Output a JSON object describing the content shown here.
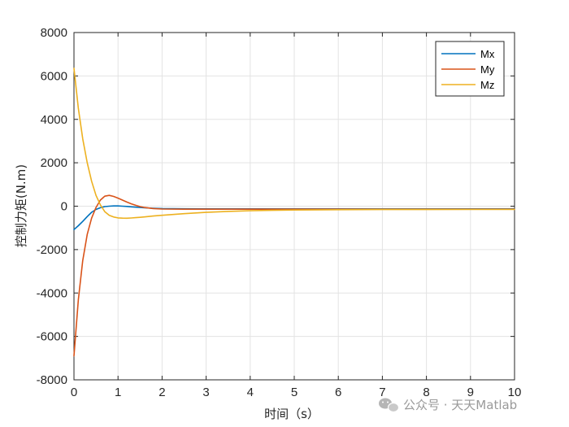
{
  "chart_data": {
    "type": "line",
    "title": "",
    "xlabel": "时间（s）",
    "ylabel": "控制力矩(N.m)",
    "xlim": [
      0,
      10
    ],
    "ylim": [
      -8000,
      8000
    ],
    "xticks": [
      0,
      1,
      2,
      3,
      4,
      5,
      6,
      7,
      8,
      9,
      10
    ],
    "yticks": [
      -8000,
      -6000,
      -4000,
      -2000,
      0,
      2000,
      4000,
      6000,
      8000
    ],
    "grid": true,
    "legend_position": "top-right",
    "x": [
      0,
      0.1,
      0.2,
      0.3,
      0.4,
      0.5,
      0.6,
      0.7,
      0.8,
      0.9,
      1.0,
      1.1,
      1.2,
      1.3,
      1.4,
      1.5,
      1.6,
      1.8,
      2.0,
      2.5,
      3.0,
      3.5,
      4.0,
      4.5,
      5.0,
      6.0,
      7.0,
      8.0,
      9.0,
      10.0
    ],
    "series": [
      {
        "name": "Mx",
        "color": "#0072BD",
        "values": [
          -1080,
          -900,
          -700,
          -480,
          -280,
          -150,
          -70,
          -20,
          0,
          10,
          10,
          0,
          -10,
          -30,
          -45,
          -60,
          -75,
          -95,
          -110,
          -120,
          -125,
          -125,
          -125,
          -125,
          -125,
          -125,
          -125,
          -125,
          -125,
          -125
        ]
      },
      {
        "name": "My",
        "color": "#D95319",
        "values": [
          -6900,
          -4300,
          -2500,
          -1300,
          -550,
          -60,
          280,
          460,
          500,
          450,
          370,
          280,
          190,
          110,
          40,
          -20,
          -60,
          -110,
          -130,
          -140,
          -140,
          -140,
          -140,
          -140,
          -140,
          -140,
          -140,
          -140,
          -140,
          -140
        ]
      },
      {
        "name": "Mz",
        "color": "#EDB120",
        "values": [
          6350,
          4500,
          3100,
          2000,
          1150,
          500,
          60,
          -250,
          -420,
          -500,
          -540,
          -550,
          -555,
          -545,
          -530,
          -515,
          -495,
          -455,
          -420,
          -345,
          -285,
          -240,
          -210,
          -190,
          -175,
          -160,
          -155,
          -152,
          -150,
          -150
        ]
      }
    ]
  },
  "watermark": {
    "text": "公众号 · 天天Matlab",
    "icon": "wechat-icon"
  }
}
